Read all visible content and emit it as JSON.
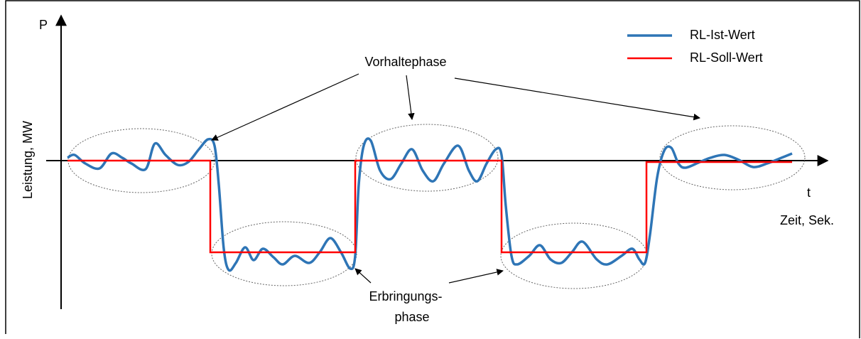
{
  "diagram": {
    "y_axis": {
      "symbol": "P",
      "label": "Leistung, MW"
    },
    "x_axis": {
      "symbol": "t",
      "label": "Zeit, Sek."
    },
    "legend": [
      {
        "name": "RL-Ist-Wert",
        "color": "#2e75b6"
      },
      {
        "name": "RL-Soll-Wert",
        "color": "#ff0000"
      }
    ],
    "annotations": {
      "hold_phase": "Vorhaltephase",
      "delivery_phase": [
        "Erbringungs-",
        "phase"
      ]
    }
  }
}
